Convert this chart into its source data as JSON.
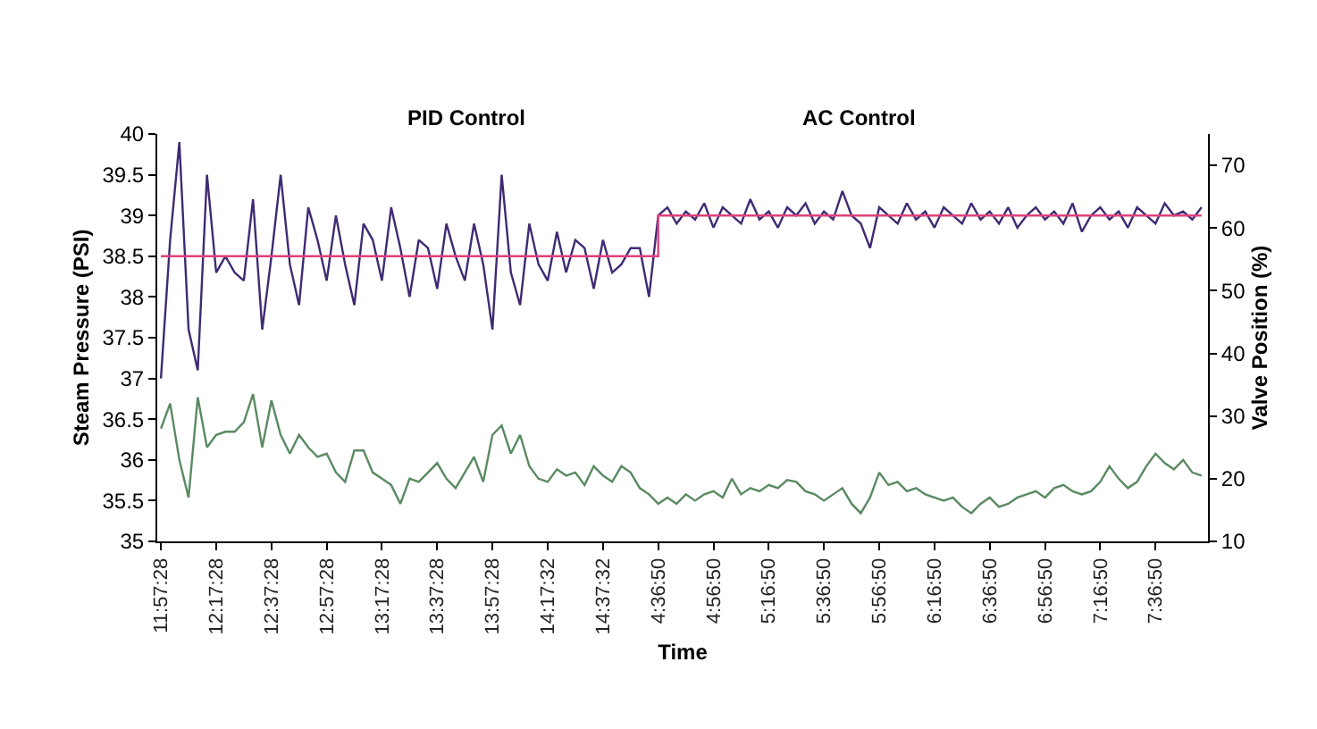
{
  "chart_data": {
    "type": "line",
    "xlabel": "Time",
    "ylabel": "Steam Pressure (PSI)",
    "y2label": "Valve Position (%)",
    "annotations": [
      "PID Control",
      "AC Control"
    ],
    "categories": [
      "11:57:28",
      null,
      null,
      null,
      null,
      null,
      "12:17:28",
      null,
      null,
      null,
      null,
      null,
      "12:37:28",
      null,
      null,
      null,
      null,
      null,
      "12:57:28",
      null,
      null,
      null,
      null,
      null,
      "13:17:28",
      null,
      null,
      null,
      null,
      null,
      "13:37:28",
      null,
      null,
      null,
      null,
      null,
      "13:57:28",
      null,
      null,
      null,
      null,
      null,
      "14:17:32",
      null,
      null,
      null,
      null,
      null,
      "14:37:32",
      null,
      null,
      null,
      null,
      null,
      "4:36:50",
      null,
      null,
      null,
      null,
      null,
      "4:56:50",
      null,
      null,
      null,
      null,
      null,
      "5:16:50",
      null,
      null,
      null,
      null,
      null,
      "5:36:50",
      null,
      null,
      null,
      null,
      null,
      "5:56:50",
      null,
      null,
      null,
      null,
      null,
      "6:16:50",
      null,
      null,
      null,
      null,
      null,
      "6:36:50",
      null,
      null,
      null,
      null,
      null,
      "6:56:50",
      null,
      null,
      null,
      null,
      null,
      "7:16:50",
      null,
      null,
      null,
      null,
      null,
      "7:36:50",
      null,
      null,
      null,
      null,
      null
    ],
    "series": [
      {
        "color": "#5a8a62",
        "axis": "y2",
        "values": [
          28,
          32,
          23,
          17,
          33,
          25,
          27,
          27.5,
          27.5,
          29,
          33.5,
          25,
          32.5,
          27,
          24,
          27,
          25,
          23.5,
          24,
          21,
          19.5,
          24.5,
          24.5,
          21,
          20,
          19,
          16,
          20,
          19.5,
          21,
          22.5,
          20,
          18.5,
          21,
          23.5,
          19.5,
          27,
          28.5,
          24,
          27,
          22,
          20,
          19.5,
          21.5,
          20.5,
          21,
          19,
          22,
          20.5,
          19.5,
          22,
          21,
          18.5,
          17.5,
          16,
          17,
          16,
          17.5,
          16.5,
          17.5,
          18,
          17,
          20,
          17.5,
          18.5,
          18,
          19,
          18.5,
          19.8,
          19.5,
          18,
          17.5,
          16.5,
          17.5,
          18.5,
          16,
          14.5,
          17,
          21,
          19,
          19.5,
          18,
          18.5,
          17.5,
          17,
          16.5,
          17,
          15.5,
          14.5,
          16,
          17,
          15.5,
          16,
          17,
          17.5,
          18,
          17,
          18.5,
          19,
          18,
          17.5,
          18,
          19.5,
          22,
          20,
          18.5,
          19.5,
          22,
          24,
          22.5,
          21.5,
          23,
          21,
          20.5
        ]
      },
      {
        "color": "#3f2a73",
        "values": [
          37.0,
          38.7,
          39.9,
          37.6,
          37.1,
          39.5,
          38.3,
          38.5,
          38.3,
          38.2,
          39.2,
          37.6,
          38.5,
          39.5,
          38.4,
          37.9,
          39.1,
          38.7,
          38.2,
          39.0,
          38.4,
          37.9,
          38.9,
          38.7,
          38.2,
          39.1,
          38.6,
          38.0,
          38.7,
          38.6,
          38.1,
          38.9,
          38.5,
          38.2,
          38.9,
          38.4,
          37.6,
          39.5,
          38.3,
          37.9,
          38.9,
          38.4,
          38.2,
          38.8,
          38.3,
          38.7,
          38.6,
          38.1,
          38.7,
          38.3,
          38.4,
          38.6,
          38.6,
          38.0,
          39.0,
          39.1,
          38.9,
          39.05,
          38.95,
          39.15,
          38.85,
          39.1,
          39.0,
          38.9,
          39.2,
          38.95,
          39.05,
          38.85,
          39.1,
          39.0,
          39.15,
          38.9,
          39.05,
          38.95,
          39.3,
          39.0,
          38.9,
          38.6,
          39.1,
          39.0,
          38.9,
          39.15,
          38.95,
          39.05,
          38.85,
          39.1,
          39.0,
          38.9,
          39.15,
          38.95,
          39.05,
          38.9,
          39.1,
          38.85,
          39.0,
          39.1,
          38.95,
          39.05,
          38.9,
          39.15,
          38.8,
          39.0,
          39.1,
          38.95,
          39.05,
          38.85,
          39.1,
          39.0,
          38.9,
          39.15,
          39.0,
          39.05,
          38.95,
          39.1
        ]
      },
      {
        "type": "step",
        "color": "#e0407a",
        "values": [
          38.5,
          38.5,
          38.5,
          38.5,
          38.5,
          38.5,
          38.5,
          38.5,
          38.5,
          38.5,
          38.5,
          38.5,
          38.5,
          38.5,
          38.5,
          38.5,
          38.5,
          38.5,
          38.5,
          38.5,
          38.5,
          38.5,
          38.5,
          38.5,
          38.5,
          38.5,
          38.5,
          38.5,
          38.5,
          38.5,
          38.5,
          38.5,
          38.5,
          38.5,
          38.5,
          38.5,
          38.5,
          38.5,
          38.5,
          38.5,
          38.5,
          38.5,
          38.5,
          38.5,
          38.5,
          38.5,
          38.5,
          38.5,
          38.5,
          38.5,
          38.5,
          38.5,
          38.5,
          38.5,
          39,
          39,
          39,
          39,
          39,
          39,
          39,
          39,
          39,
          39,
          39,
          39,
          39,
          39,
          39,
          39,
          39,
          39,
          39,
          39,
          39,
          39,
          39,
          39,
          39,
          39,
          39,
          39,
          39,
          39,
          39,
          39,
          39,
          39,
          39,
          39,
          39,
          39,
          39,
          39,
          39,
          39,
          39,
          39,
          39,
          39,
          39,
          39,
          39,
          39,
          39,
          39,
          39,
          39,
          39,
          39,
          39,
          39,
          39,
          39
        ]
      }
    ],
    "ylim": [
      35,
      40
    ],
    "yticks": [
      35,
      35.5,
      36,
      36.5,
      37,
      37.5,
      38,
      38.5,
      39,
      39.5,
      40
    ],
    "y2lim": [
      10,
      75
    ],
    "y2ticks": [
      10,
      20,
      30,
      40,
      50,
      60,
      70
    ]
  }
}
